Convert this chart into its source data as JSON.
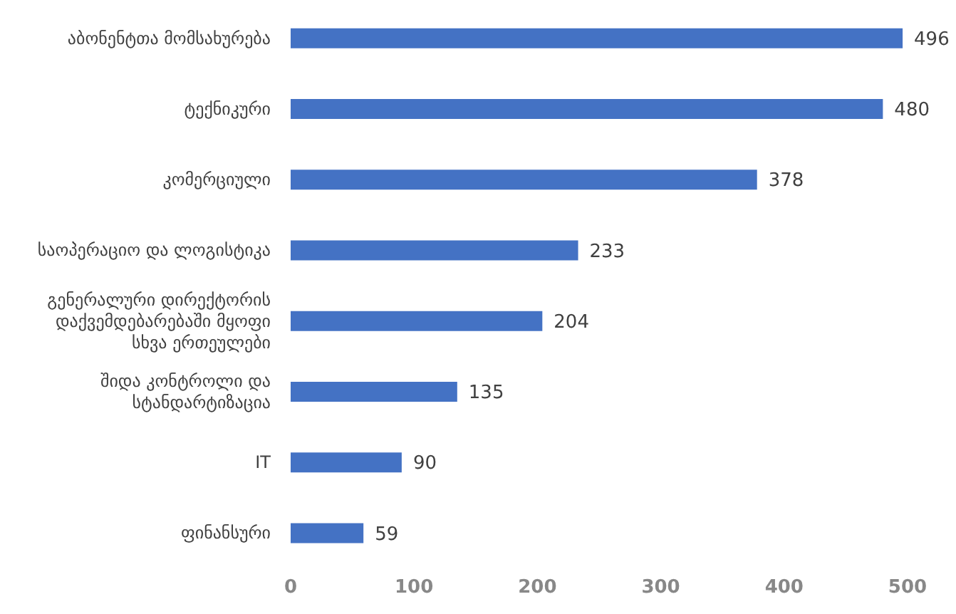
{
  "chart_data": {
    "type": "bar",
    "orientation": "horizontal",
    "categories": [
      "აბონენტთა მომსახურება",
      "ტექნიკური",
      "კომერციული",
      "საოპერაციო და ლოგისტიკა",
      "გენერალური დირექტორის დაქვემდებარებაში მყოფი სხვა ერთეულები",
      "შიდა კონტროლი და სტანდარტიზაცია",
      "IT",
      "ფინანსური"
    ],
    "values": [
      496,
      480,
      378,
      233,
      204,
      135,
      90,
      59
    ],
    "color": "#4472c4",
    "xlim": [
      0,
      500
    ],
    "xticks": [
      0,
      100,
      200,
      300,
      400,
      500
    ],
    "data_labels": true
  }
}
